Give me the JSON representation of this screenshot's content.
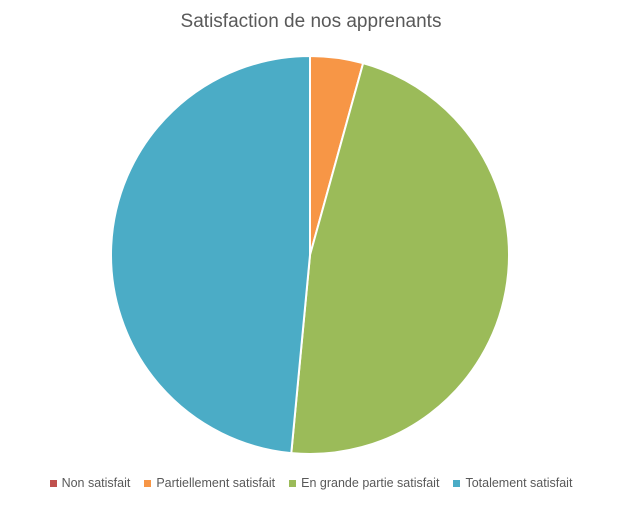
{
  "chart_data": {
    "type": "pie",
    "title": "Satisfaction de nos apprenants",
    "categories": [
      "Non satisfait",
      "Partiellement satisfait",
      "En grande partie satisfait",
      "Totalement satisfait"
    ],
    "values": [
      0,
      4.3,
      47.2,
      48.5
    ],
    "colors": [
      "#C0504D",
      "#F79646",
      "#9BBB59",
      "#4BACC6"
    ],
    "legend_position": "bottom"
  }
}
